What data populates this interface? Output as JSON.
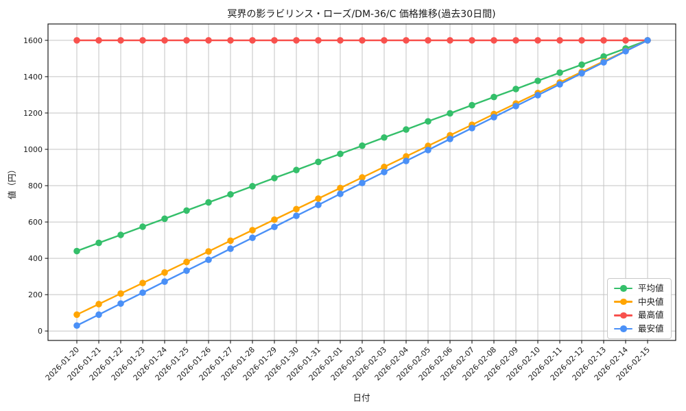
{
  "title": "冥界の影ラビリンス・ローズ/DM-36/C 価格推移(過去30日間)",
  "chart_data": {
    "type": "line",
    "title": "冥界の影ラビリンス・ローズ/DM-36/C 価格推移(過去30日間)",
    "xlabel": "日付",
    "ylabel": "値（円）",
    "x": [
      "2026-01-20",
      "2026-01-21",
      "2026-01-22",
      "2026-01-23",
      "2026-01-24",
      "2026-01-25",
      "2026-01-26",
      "2026-01-27",
      "2026-01-28",
      "2026-01-29",
      "2026-01-30",
      "2026-01-31",
      "2026-02-01",
      "2026-02-02",
      "2026-02-03",
      "2026-02-04",
      "2026-02-05",
      "2026-02-06",
      "2026-02-07",
      "2026-02-08",
      "2026-02-09",
      "2026-02-10",
      "2026-02-11",
      "2026-02-12",
      "2026-02-13",
      "2026-02-14",
      "2026-02-15"
    ],
    "series": [
      {
        "name": "平均値",
        "color": "#34bf6a",
        "values": [
          440,
          485,
          529,
          574,
          618,
          663,
          708,
          752,
          797,
          842,
          886,
          931,
          975,
          1020,
          1065,
          1109,
          1154,
          1198,
          1243,
          1288,
          1332,
          1377,
          1422,
          1466,
          1511,
          1555,
          1600
        ]
      },
      {
        "name": "中央値",
        "color": "#ffa502",
        "values": [
          90,
          148,
          206,
          264,
          322,
          380,
          438,
          497,
          555,
          613,
          671,
          729,
          787,
          845,
          903,
          961,
          1019,
          1077,
          1135,
          1194,
          1252,
          1310,
          1368,
          1426,
          1484,
          1542,
          1600
        ]
      },
      {
        "name": "最高値",
        "color": "#f8514d",
        "values": [
          1600,
          1600,
          1600,
          1600,
          1600,
          1600,
          1600,
          1600,
          1600,
          1600,
          1600,
          1600,
          1600,
          1600,
          1600,
          1600,
          1600,
          1600,
          1600,
          1600,
          1600,
          1600,
          1600,
          1600,
          1600,
          1600,
          1600
        ]
      },
      {
        "name": "最安値",
        "color": "#4a90f7",
        "values": [
          30,
          90,
          151,
          211,
          272,
          332,
          392,
          453,
          513,
          573,
          634,
          694,
          755,
          815,
          875,
          936,
          996,
          1057,
          1117,
          1177,
          1238,
          1298,
          1358,
          1419,
          1479,
          1540,
          1600
        ]
      }
    ],
    "yticks": [
      0,
      200,
      400,
      600,
      800,
      1000,
      1200,
      1400,
      1600
    ],
    "ylim": [
      -52,
      1690
    ],
    "grid": true,
    "grid_color": "#c3c3c3",
    "x_tick_rotation": 45,
    "legend_position": "lower right"
  }
}
